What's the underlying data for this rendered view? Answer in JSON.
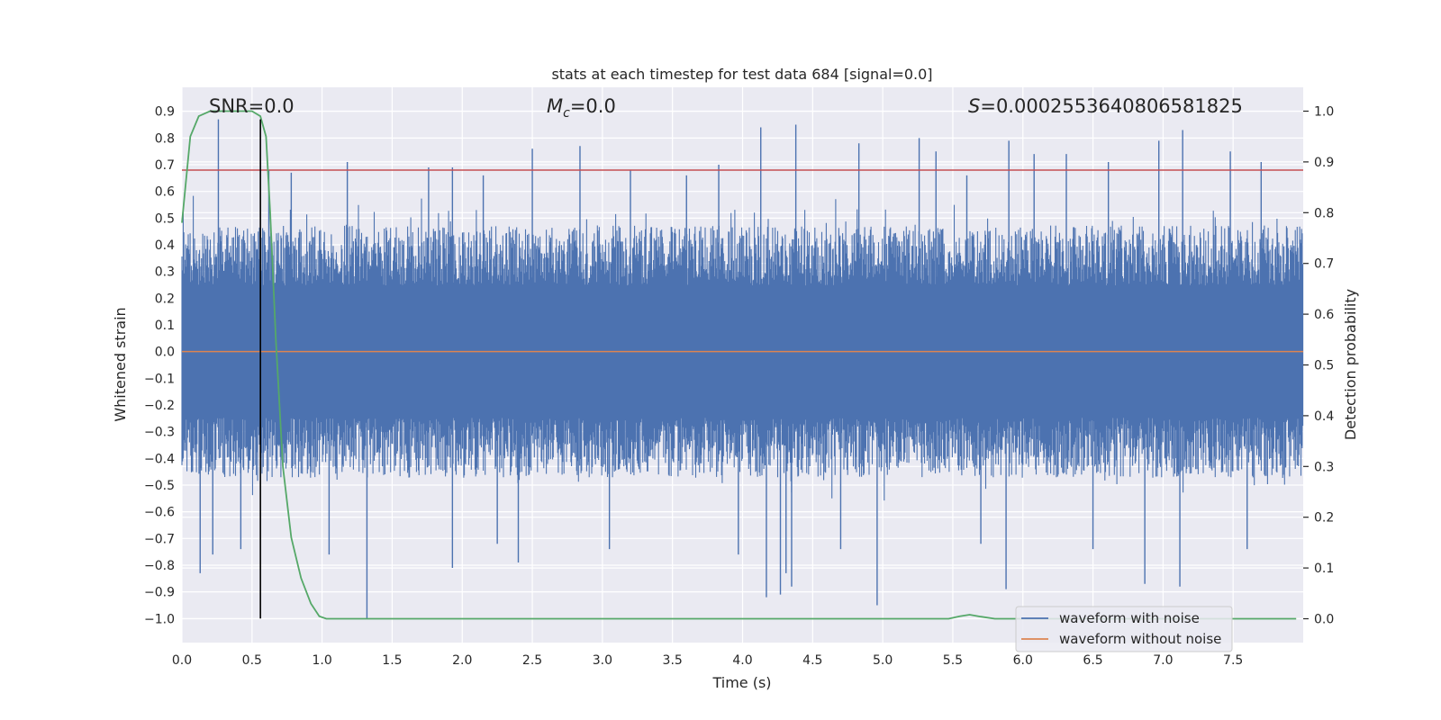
{
  "chart_data": {
    "type": "line",
    "title": "stats at each timestep for test data 684 [signal=0.0]",
    "xlabel": "Time (s)",
    "ylabel": "Whitened strain",
    "ylabel_right": "Detection probability",
    "xlim": [
      0.0,
      8.0
    ],
    "ylim": [
      -1.09,
      0.99
    ],
    "ylim_right": [
      -0.047,
      1.047
    ],
    "x_ticks": [
      "0.0",
      "0.5",
      "1.0",
      "1.5",
      "2.0",
      "2.5",
      "3.0",
      "3.5",
      "4.0",
      "4.5",
      "5.0",
      "5.5",
      "6.0",
      "6.5",
      "7.0",
      "7.5"
    ],
    "y_ticks": [
      "−1.0",
      "−0.9",
      "−0.8",
      "−0.7",
      "−0.6",
      "−0.5",
      "−0.4",
      "−0.3",
      "−0.2",
      "−0.1",
      "0.0",
      "0.1",
      "0.2",
      "0.3",
      "0.4",
      "0.5",
      "0.6",
      "0.7",
      "0.8",
      "0.9"
    ],
    "y_right_ticks": [
      "0.0",
      "0.1",
      "0.2",
      "0.3",
      "0.4",
      "0.5",
      "0.6",
      "0.7",
      "0.8",
      "0.9",
      "1.0"
    ],
    "grid": true,
    "annotations": {
      "snr": "SNR=0.0",
      "mc_symbol": "M",
      "mc_sub": "c",
      "mc_value": "=0.0",
      "s_symbol": "S",
      "s_value": "=0.0002553640806581825"
    },
    "legend": {
      "placement": "lower-right",
      "entries": [
        "waveform with noise",
        "waveform without noise"
      ]
    },
    "series": [
      {
        "name": "waveform with noise",
        "color": "#4c72b0",
        "axis": "left",
        "band_lower": -0.45,
        "band_upper": 0.45,
        "spikes": [
          [
            0.26,
            0.87
          ],
          [
            0.62,
            0.68
          ],
          [
            0.13,
            -0.83
          ],
          [
            0.22,
            -0.76
          ],
          [
            0.42,
            -0.74
          ],
          [
            1.18,
            0.71
          ],
          [
            1.32,
            -1.0
          ],
          [
            1.76,
            0.69
          ],
          [
            1.93,
            0.69
          ],
          [
            1.93,
            -0.81
          ],
          [
            2.5,
            0.76
          ],
          [
            2.84,
            0.77
          ],
          [
            2.4,
            -0.79
          ],
          [
            3.83,
            0.7
          ],
          [
            4.13,
            0.84
          ],
          [
            4.38,
            0.85
          ],
          [
            3.97,
            -0.76
          ],
          [
            4.17,
            -0.92
          ],
          [
            4.27,
            -0.91
          ],
          [
            4.31,
            -0.83
          ],
          [
            4.35,
            -0.88
          ],
          [
            4.83,
            0.78
          ],
          [
            4.96,
            -0.95
          ],
          [
            5.26,
            0.8
          ],
          [
            5.38,
            0.75
          ],
          [
            5.9,
            0.79
          ],
          [
            6.08,
            0.74
          ],
          [
            5.88,
            -0.89
          ],
          [
            6.31,
            0.74
          ],
          [
            6.61,
            0.71
          ],
          [
            6.97,
            0.79
          ],
          [
            6.87,
            -0.87
          ],
          [
            7.14,
            0.83
          ],
          [
            7.12,
            -0.88
          ],
          [
            7.48,
            0.75
          ],
          [
            7.7,
            0.71
          ],
          [
            2.15,
            0.66
          ],
          [
            2.25,
            -0.72
          ],
          [
            3.2,
            0.68
          ],
          [
            3.05,
            -0.74
          ],
          [
            5.6,
            0.66
          ],
          [
            5.7,
            -0.72
          ],
          [
            6.5,
            -0.74
          ],
          [
            7.6,
            -0.74
          ],
          [
            0.78,
            0.67
          ],
          [
            1.05,
            -0.76
          ],
          [
            3.6,
            0.66
          ],
          [
            4.7,
            -0.74
          ]
        ]
      },
      {
        "name": "waveform without noise",
        "color": "#dd8452",
        "axis": "left",
        "constant": 0.0
      },
      {
        "name": "",
        "color": "#55a868",
        "axis": "right",
        "x": [
          0.0,
          0.06,
          0.12,
          0.2,
          0.3,
          0.4,
          0.5,
          0.56,
          0.6,
          0.63,
          0.67,
          0.72,
          0.78,
          0.85,
          0.92,
          0.98,
          1.03,
          1.1,
          5.47,
          5.55,
          5.62,
          5.7,
          5.8,
          7.95
        ],
        "y": [
          0.78,
          0.95,
          0.99,
          1.0,
          1.0,
          1.0,
          1.0,
          0.99,
          0.95,
          0.8,
          0.55,
          0.3,
          0.16,
          0.08,
          0.03,
          0.005,
          0.0,
          0.0,
          0.0,
          0.005,
          0.008,
          0.004,
          0.0,
          0.0
        ]
      }
    ],
    "threshold": {
      "value": 0.68,
      "color": "#c44e52",
      "axis": "left"
    },
    "vline": {
      "x": 0.56,
      "color": "#000000"
    }
  }
}
